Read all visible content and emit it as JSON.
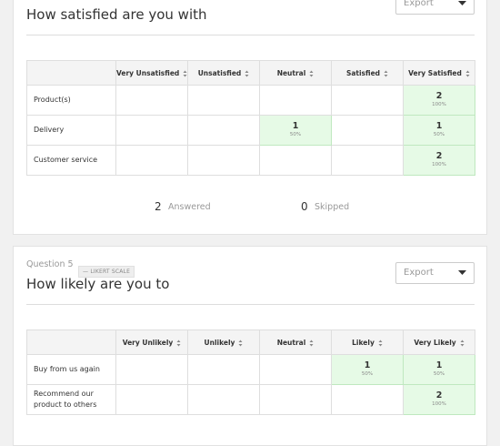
{
  "questions": [
    {
      "title": "How satisfied are you with",
      "export": "Export",
      "columns": [
        "Very Unsatisfied",
        "Unsatisfied",
        "Neutral",
        "Satisfied",
        "Very Satisfied"
      ],
      "rows": [
        {
          "label": "Product(s)",
          "cells": [
            null,
            null,
            null,
            null,
            {
              "count": 2,
              "percent": "100%"
            }
          ]
        },
        {
          "label": "Delivery",
          "cells": [
            null,
            null,
            {
              "count": 1,
              "percent": "50%"
            },
            null,
            {
              "count": 1,
              "percent": "50%"
            }
          ]
        },
        {
          "label": "Customer service",
          "cells": [
            null,
            null,
            null,
            null,
            {
              "count": 2,
              "percent": "100%"
            }
          ]
        }
      ],
      "answered": {
        "count": 2,
        "label": "Answered"
      },
      "skipped": {
        "count": 0,
        "label": "Skipped"
      }
    },
    {
      "number": "Question 5",
      "badge": "LIKERT SCALE",
      "title": "How likely are you to",
      "export": "Export",
      "columns": [
        "Very Unlikely",
        "Unlikely",
        "Neutral",
        "Likely",
        "Very Likely"
      ],
      "rows": [
        {
          "label": "Buy from us again",
          "cells": [
            null,
            null,
            null,
            {
              "count": 1,
              "percent": "50%"
            },
            {
              "count": 1,
              "percent": "50%"
            }
          ]
        },
        {
          "label": "Recommend our product to others",
          "cells": [
            null,
            null,
            null,
            null,
            {
              "count": 2,
              "percent": "100%"
            }
          ]
        }
      ]
    }
  ]
}
